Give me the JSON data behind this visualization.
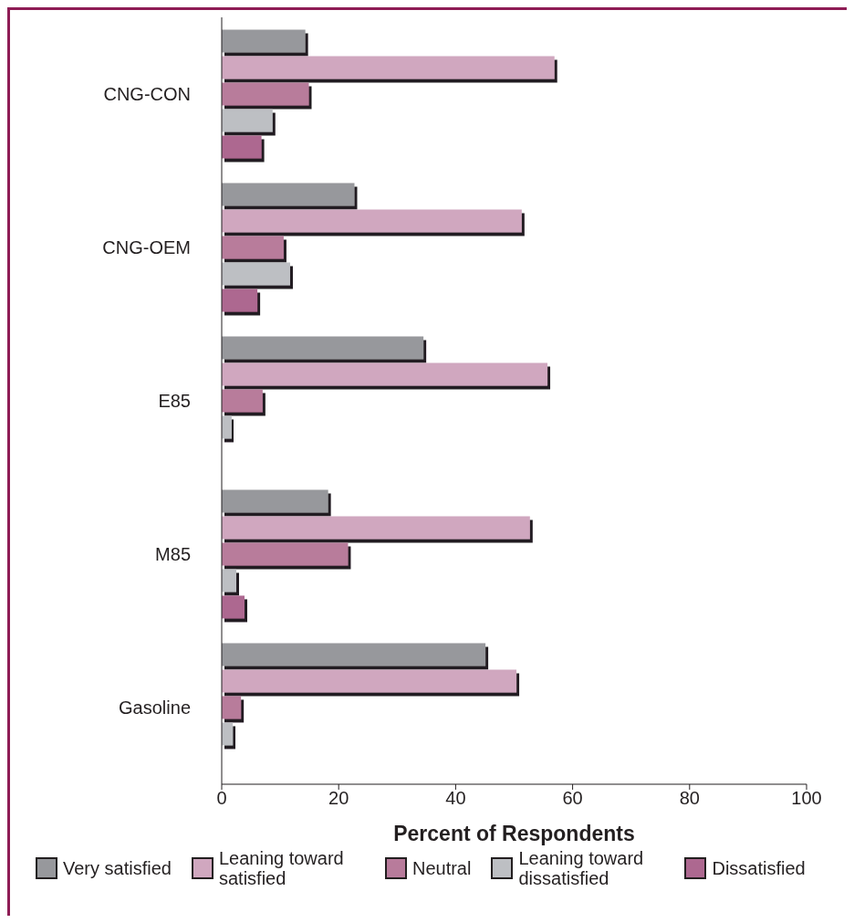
{
  "chart_data": {
    "type": "bar",
    "orientation": "horizontal",
    "xlabel": "Percent of Respondents",
    "categories": [
      "CNG-CON",
      "CNG-OEM",
      "E85",
      "M85",
      "Gasoline"
    ],
    "series": [
      {
        "name": "Very satisfied",
        "color": "#97989c",
        "values": [
          14.3,
          22.7,
          34.5,
          18.2,
          45.1
        ]
      },
      {
        "name": "Leaning toward satisfied",
        "color": "#d0a7bf",
        "values": [
          56.9,
          51.3,
          55.7,
          52.7,
          50.4
        ]
      },
      {
        "name": "Neutral",
        "color": "#b87b9b",
        "values": [
          14.9,
          10.6,
          7.0,
          21.6,
          3.3
        ]
      },
      {
        "name": "Leaning toward dissatisfied",
        "color": "#bdbfc3",
        "values": [
          8.7,
          11.7,
          1.7,
          2.5,
          1.9
        ]
      },
      {
        "name": "Dissatisfied",
        "color": "#ad6890",
        "values": [
          6.8,
          6.1,
          0,
          3.9,
          0
        ]
      }
    ],
    "xlim": [
      0,
      100
    ],
    "xticks": [
      0,
      20,
      40,
      60,
      80,
      100
    ],
    "grid": false,
    "legend": "bottom"
  }
}
